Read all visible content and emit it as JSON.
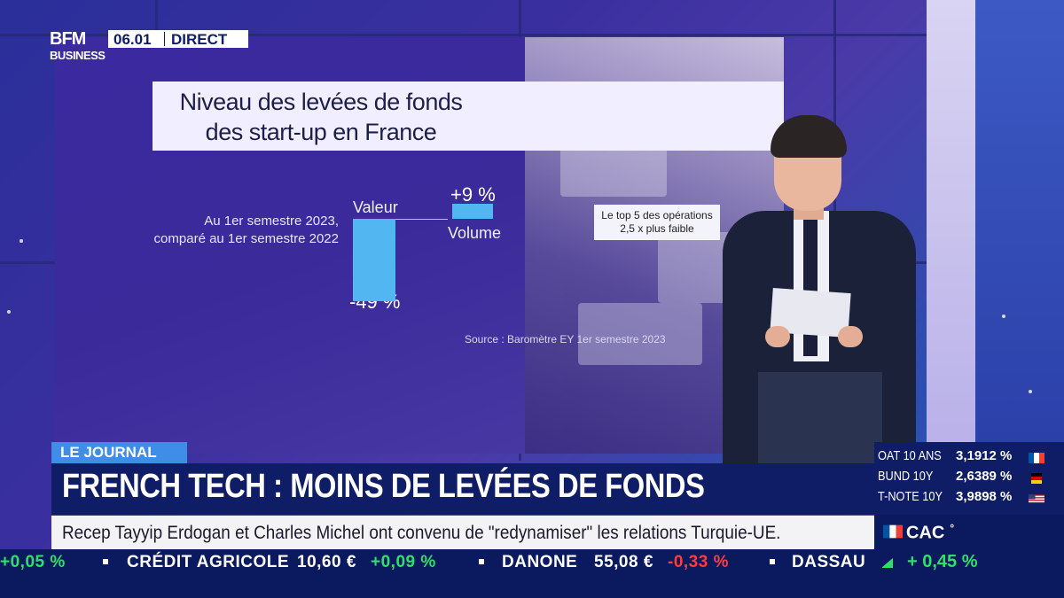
{
  "channel": {
    "logo_line1": "BFM",
    "logo_line2": "BUSINESS",
    "time": "06.01",
    "live_label": "DIRECT"
  },
  "screen_graphic": {
    "title_line1": "Niveau des levées de fonds",
    "title_line2": "des start-up en France",
    "comparison_line1": "Au 1er semestre 2023,",
    "comparison_line2": "comparé au 1er semestre 2022",
    "valeur_label": "Valeur",
    "valeur_change": "-49 %",
    "valeur_pct": -49,
    "volume_label": "Volume",
    "volume_change": "+9 %",
    "volume_pct": 9,
    "callout_line1": "Le top 5 des opérations",
    "callout_line2": "2,5 x plus faible",
    "source": "Source : Baromètre EY 1er semestre 2023"
  },
  "lower_third": {
    "section_tag": "LE JOURNAL",
    "headline": "FRENCH TECH : MOINS DE LEVÉES DE FONDS",
    "subline": "Recep Tayyip Erdogan et Charles Michel ont convenu de \"redynamiser\" les relations Turquie-UE."
  },
  "rates": [
    {
      "name": "OAT 10 ANS",
      "value": "3,1912 %",
      "flag": "fr-flag-icon"
    },
    {
      "name": "BUND 10Y",
      "value": "2,6389 %",
      "flag": "de-flag-icon"
    },
    {
      "name": "T-NOTE 10Y",
      "value": "3,9898 %",
      "flag": "us-flag-icon"
    }
  ],
  "ticker": {
    "items": [
      {
        "text": "+0,05 %",
        "color": "#2ee06a"
      },
      {
        "text": "CRÉDIT AGRICOLE",
        "color": "#ffffff"
      },
      {
        "text": "10,60 €",
        "color": "#ffffff"
      },
      {
        "text": "+0,09 %",
        "color": "#2ee06a"
      },
      {
        "text": "DANONE",
        "color": "#ffffff"
      },
      {
        "text": "55,08 €",
        "color": "#ffffff"
      },
      {
        "text": "-0,33 %",
        "color": "#ff3b3b"
      },
      {
        "text": "DASSAU",
        "color": "#ffffff"
      }
    ]
  },
  "index": {
    "name": "CAC",
    "superscript": "°",
    "change": "+ 0,45 %",
    "color": "#2ee06a"
  },
  "colors": {
    "accent_blue": "#3f8de6",
    "navy": "#0e1d66",
    "bar_blue": "#52b7f0",
    "positive": "#2ee06a",
    "negative": "#ff3b3b"
  }
}
